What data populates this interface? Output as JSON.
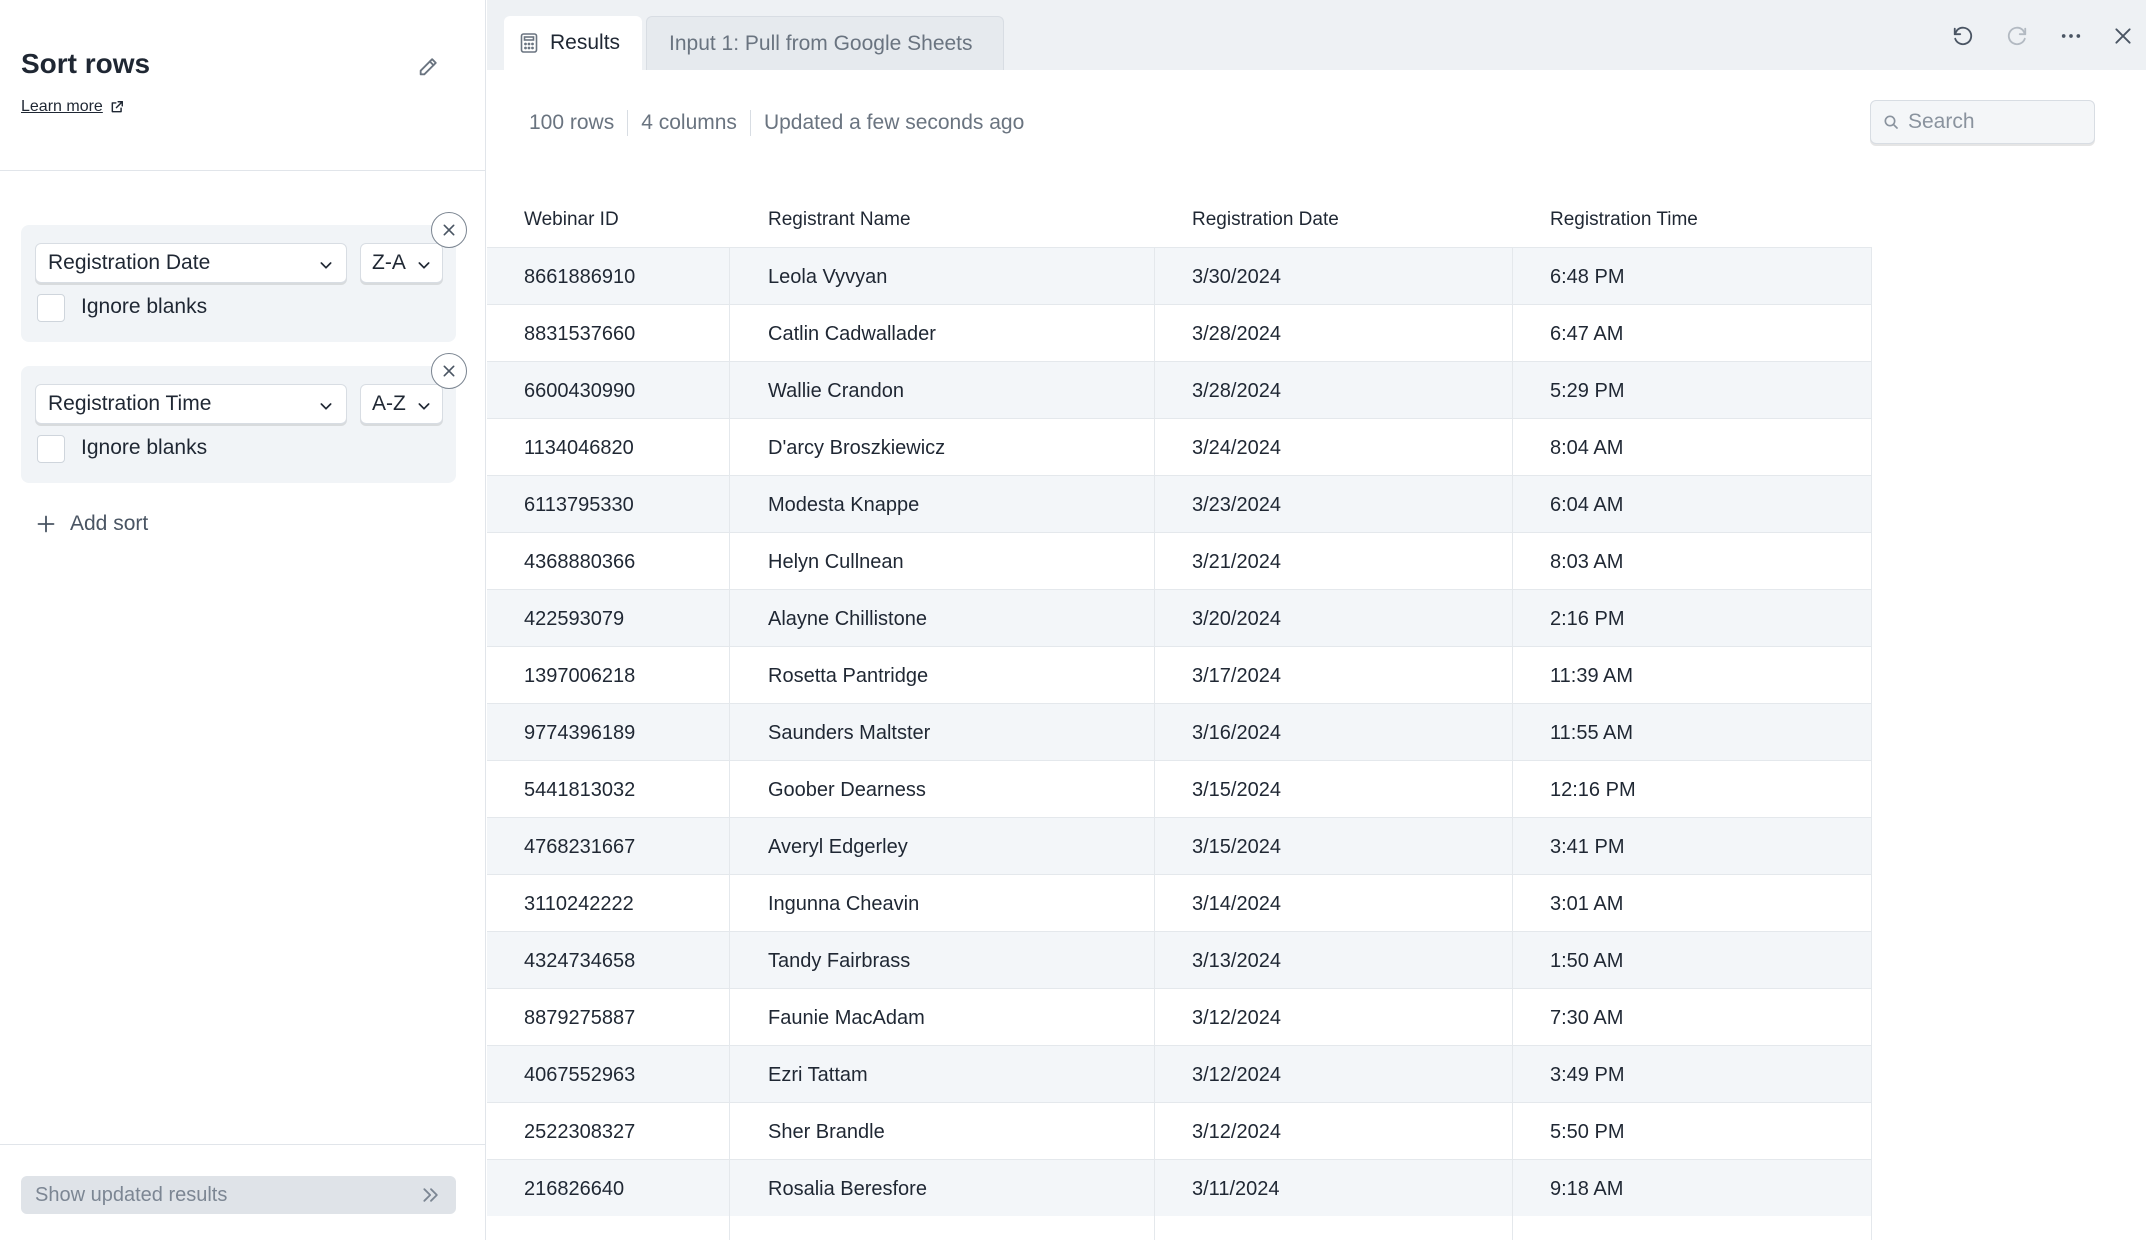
{
  "sidebar": {
    "title": "Sort rows",
    "learn_more": "Learn more",
    "sorts": [
      {
        "field": "Registration Date",
        "order": "Z-A",
        "ignore_blanks_label": "Ignore blanks",
        "ignore_blanks": false
      },
      {
        "field": "Registration Time",
        "order": "A-Z",
        "ignore_blanks_label": "Ignore blanks",
        "ignore_blanks": false
      }
    ],
    "add_sort": "Add sort",
    "show_results": "Show updated results"
  },
  "tabs": [
    {
      "label": "Results",
      "icon": "calculator-icon",
      "active": true
    },
    {
      "label": "Input 1: Pull from Google Sheets",
      "active": false
    }
  ],
  "toolbar_icons": [
    "undo-icon",
    "redo-icon",
    "more-icon",
    "close-icon"
  ],
  "summary": {
    "rows": "100 rows",
    "columns": "4 columns",
    "updated": "Updated a few seconds ago"
  },
  "search": {
    "placeholder": "Search",
    "value": ""
  },
  "table": {
    "columns": [
      "Webinar ID",
      "Registrant Name",
      "Registration Date",
      "Registration Time"
    ],
    "rows": [
      [
        "8661886910",
        "Leola Vyvyan",
        "3/30/2024",
        "6:48 PM"
      ],
      [
        "8831537660",
        "Catlin Cadwallader",
        "3/28/2024",
        "6:47 AM"
      ],
      [
        "6600430990",
        "Wallie Crandon",
        "3/28/2024",
        "5:29 PM"
      ],
      [
        "1134046820",
        "D'arcy Broszkiewicz",
        "3/24/2024",
        "8:04 AM"
      ],
      [
        "6113795330",
        "Modesta Knappe",
        "3/23/2024",
        "6:04 AM"
      ],
      [
        "4368880366",
        "Helyn Cullnean",
        "3/21/2024",
        "8:03 AM"
      ],
      [
        "422593079",
        "Alayne Chillistone",
        "3/20/2024",
        "2:16 PM"
      ],
      [
        "1397006218",
        "Rosetta Pantridge",
        "3/17/2024",
        "11:39 AM"
      ],
      [
        "9774396189",
        "Saunders Maltster",
        "3/16/2024",
        "11:55 AM"
      ],
      [
        "5441813032",
        "Goober Dearness",
        "3/15/2024",
        "12:16 PM"
      ],
      [
        "4768231667",
        "Averyl Edgerley",
        "3/15/2024",
        "3:41 PM"
      ],
      [
        "3110242222",
        "Ingunna Cheavin",
        "3/14/2024",
        "3:01 AM"
      ],
      [
        "4324734658",
        "Tandy Fairbrass",
        "3/13/2024",
        "1:50 AM"
      ],
      [
        "8879275887",
        "Faunie MacAdam",
        "3/12/2024",
        "7:30 AM"
      ],
      [
        "4067552963",
        "Ezri Tattam",
        "3/12/2024",
        "3:49 PM"
      ],
      [
        "2522308327",
        "Sher Brandle",
        "3/12/2024",
        "5:50 PM"
      ],
      [
        "216826640",
        "Rosalia Beresfore",
        "3/11/2024",
        "9:18 AM"
      ]
    ]
  }
}
